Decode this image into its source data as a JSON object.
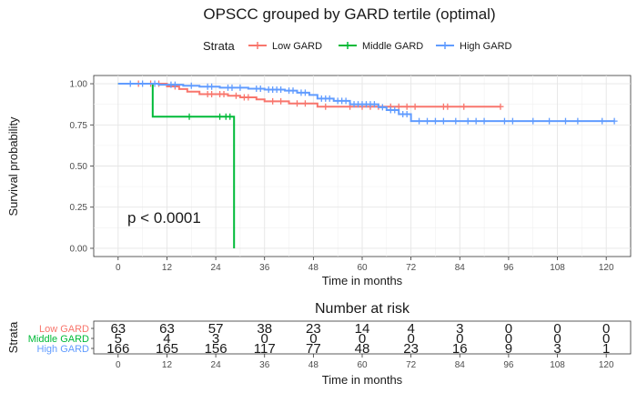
{
  "chart_data": [
    {
      "type": "line",
      "subtype": "kaplan-meier",
      "title": "OPSCC grouped by GARD tertile (optimal)",
      "xlabel": "Time in months",
      "ylabel": "Survival probability",
      "xlim": [
        -6,
        126
      ],
      "ylim": [
        -0.05,
        1.05
      ],
      "xticks": [
        0,
        12,
        24,
        36,
        48,
        60,
        72,
        84,
        96,
        108,
        120
      ],
      "yticks": [
        0.0,
        0.25,
        0.5,
        0.75,
        1.0
      ],
      "ytick_labels": [
        "0.00",
        "0.25",
        "0.50",
        "0.75",
        "1.00"
      ],
      "grid": true,
      "legend": {
        "title": "Strata",
        "position": "top"
      },
      "annotation": "p < 0.0001",
      "series": [
        {
          "name": "Low GARD",
          "color": "#F8766D",
          "steps": [
            [
              0,
              1.0
            ],
            [
              12,
              0.984
            ],
            [
              15,
              0.968
            ],
            [
              17,
              0.952
            ],
            [
              20,
              0.937
            ],
            [
              27,
              0.927
            ],
            [
              30,
              0.917
            ],
            [
              34,
              0.905
            ],
            [
              36,
              0.893
            ],
            [
              42,
              0.88
            ],
            [
              49,
              0.861
            ],
            [
              55,
              0.861
            ],
            [
              94,
              0.861
            ]
          ],
          "censored": [
            [
              5,
              1.0
            ],
            [
              8,
              1.0
            ],
            [
              10,
              1.0
            ],
            [
              14,
              0.984
            ],
            [
              22,
              0.937
            ],
            [
              23,
              0.937
            ],
            [
              25,
              0.937
            ],
            [
              26,
              0.937
            ],
            [
              29,
              0.927
            ],
            [
              31,
              0.917
            ],
            [
              32,
              0.917
            ],
            [
              38,
              0.893
            ],
            [
              40,
              0.893
            ],
            [
              44,
              0.88
            ],
            [
              46,
              0.88
            ],
            [
              51,
              0.861
            ],
            [
              57,
              0.861
            ],
            [
              60,
              0.861
            ],
            [
              62,
              0.861
            ],
            [
              64,
              0.861
            ],
            [
              67,
              0.861
            ],
            [
              69,
              0.861
            ],
            [
              71,
              0.861
            ],
            [
              73,
              0.861
            ],
            [
              80,
              0.861
            ],
            [
              81,
              0.861
            ],
            [
              85,
              0.861
            ],
            [
              94,
              0.861
            ]
          ]
        },
        {
          "name": "Middle GARD",
          "color": "#00BA38",
          "steps": [
            [
              0,
              1.0
            ],
            [
              8.5,
              0.8
            ],
            [
              28.5,
              0.0
            ]
          ],
          "censored": [
            [
              17.5,
              0.8
            ],
            [
              25,
              0.8
            ],
            [
              26.5,
              0.8
            ],
            [
              27.5,
              0.8
            ]
          ]
        },
        {
          "name": "High GARD",
          "color": "#619CFF",
          "steps": [
            [
              0,
              1.0
            ],
            [
              10,
              0.994
            ],
            [
              16,
              0.988
            ],
            [
              20,
              0.982
            ],
            [
              25,
              0.976
            ],
            [
              32,
              0.97
            ],
            [
              36,
              0.964
            ],
            [
              41,
              0.958
            ],
            [
              44,
              0.946
            ],
            [
              47,
              0.932
            ],
            [
              49,
              0.91
            ],
            [
              53,
              0.896
            ],
            [
              57,
              0.875
            ],
            [
              64,
              0.857
            ],
            [
              66,
              0.84
            ],
            [
              69,
              0.815
            ],
            [
              72,
              0.773
            ],
            [
              122,
              0.773
            ]
          ],
          "censored": [
            [
              3,
              1.0
            ],
            [
              6,
              1.0
            ],
            [
              9,
              1.0
            ],
            [
              13,
              0.994
            ],
            [
              14,
              0.994
            ],
            [
              18,
              0.988
            ],
            [
              22,
              0.982
            ],
            [
              23,
              0.982
            ],
            [
              27,
              0.976
            ],
            [
              28,
              0.976
            ],
            [
              30,
              0.976
            ],
            [
              34,
              0.97
            ],
            [
              35,
              0.97
            ],
            [
              37,
              0.964
            ],
            [
              38,
              0.964
            ],
            [
              39,
              0.964
            ],
            [
              40,
              0.964
            ],
            [
              42,
              0.958
            ],
            [
              43,
              0.958
            ],
            [
              45,
              0.946
            ],
            [
              46,
              0.946
            ],
            [
              50,
              0.91
            ],
            [
              51,
              0.91
            ],
            [
              52,
              0.91
            ],
            [
              54,
              0.896
            ],
            [
              55,
              0.896
            ],
            [
              56,
              0.896
            ],
            [
              58,
              0.875
            ],
            [
              59,
              0.875
            ],
            [
              60,
              0.875
            ],
            [
              61,
              0.875
            ],
            [
              62,
              0.875
            ],
            [
              63,
              0.875
            ],
            [
              65,
              0.857
            ],
            [
              67,
              0.84
            ],
            [
              68,
              0.84
            ],
            [
              70,
              0.815
            ],
            [
              71,
              0.815
            ],
            [
              74,
              0.773
            ],
            [
              76,
              0.773
            ],
            [
              78,
              0.773
            ],
            [
              80,
              0.773
            ],
            [
              83,
              0.773
            ],
            [
              86,
              0.773
            ],
            [
              88,
              0.773
            ],
            [
              90,
              0.773
            ],
            [
              95,
              0.773
            ],
            [
              97,
              0.773
            ],
            [
              102,
              0.773
            ],
            [
              106,
              0.773
            ],
            [
              110,
              0.773
            ],
            [
              113,
              0.773
            ],
            [
              119,
              0.773
            ],
            [
              122,
              0.773
            ]
          ]
        }
      ]
    },
    {
      "type": "table",
      "title": "Number at risk",
      "xlabel": "Time in months",
      "ylabel": "Strata",
      "columns": [
        0,
        12,
        24,
        36,
        48,
        60,
        72,
        84,
        96,
        108,
        120
      ],
      "rows": [
        {
          "name": "Low GARD",
          "color": "#F8766D",
          "values": [
            63,
            63,
            57,
            38,
            23,
            14,
            4,
            3,
            0,
            0,
            0
          ]
        },
        {
          "name": "Middle GARD",
          "color": "#00BA38",
          "values": [
            5,
            4,
            3,
            0,
            0,
            0,
            0,
            0,
            0,
            0,
            0
          ]
        },
        {
          "name": "High GARD",
          "color": "#619CFF",
          "values": [
            166,
            165,
            156,
            117,
            77,
            48,
            23,
            16,
            9,
            3,
            1
          ]
        }
      ]
    }
  ]
}
